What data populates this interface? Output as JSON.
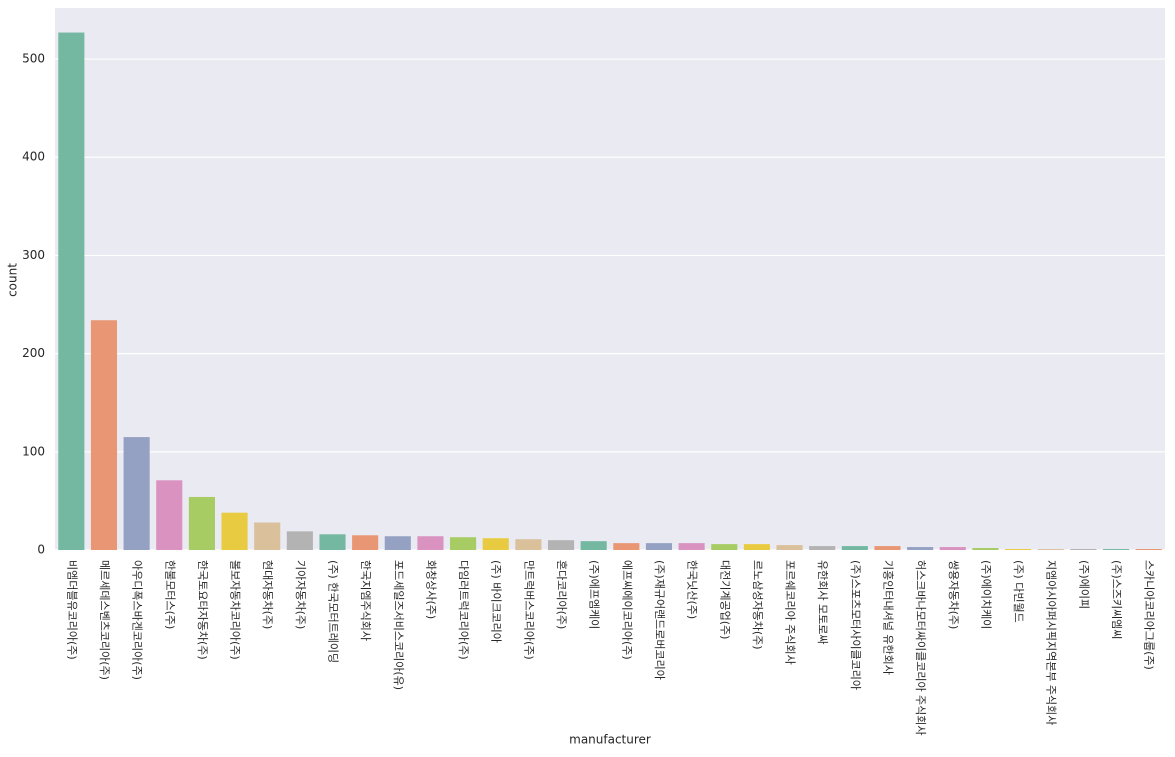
{
  "chart_data": {
    "type": "bar",
    "x_label": "manufacturer",
    "y_label": "count",
    "categories": [
      "비엠더블유코리아(주)",
      "메르세데스벤츠코리아(주)",
      "아우디폭스바겐코리아(주)",
      "한불모터스(주)",
      "한국토요타자동차(주)",
      "볼보자동차코리아(주)",
      "현대자동차(주)",
      "기아자동차(주)",
      "(주) 한국모터트레이딩",
      "한국지엠주식회사",
      "포드세일즈서비스코리아(유)",
      "화창상사(주)",
      "다임러트럭코리아(주)",
      "(주) 바이크코리아",
      "만트럭버스코리아(주)",
      "혼다코리아(주)",
      "(주)에프엠케이",
      "에프씨에이코리아(주)",
      "(주)재규어랜드로버코리아",
      "한국닛산(주)",
      "대전기계공업(주)",
      "르노삼성자동차(주)",
      "포르쉐코리아 주식회사",
      "유한회사 모토로싸",
      "(주)스포츠모터사이클코리아",
      "기흥인터내셔널 유한회사",
      "허스크바나모터싸이클코리아 주식회사",
      "쌍용자동차(주)",
      "(주)에이치케이",
      "(주) 다빈월드",
      "지엠아시아퍼시픽지역본부 주식회사",
      "(주)에이피",
      "(주)스즈키씨엠씨",
      "스카니아코리아그룹(주)"
    ],
    "values": [
      527,
      234,
      115,
      71,
      54,
      38,
      28,
      19,
      16,
      15,
      14,
      14,
      13,
      12,
      11,
      10,
      9,
      7,
      7,
      7,
      6,
      6,
      5,
      4,
      4,
      4,
      3,
      3,
      2,
      1,
      1,
      1,
      1,
      1
    ],
    "palette": [
      "#75b8a2",
      "#e99674",
      "#95a1c3",
      "#da93c0",
      "#a6cc63",
      "#e9cb42",
      "#dbc09c",
      "#b3b3b3"
    ],
    "ylim": [
      0,
      552
    ],
    "yticks": [
      0,
      100,
      200,
      300,
      400,
      500
    ],
    "grid": true
  }
}
